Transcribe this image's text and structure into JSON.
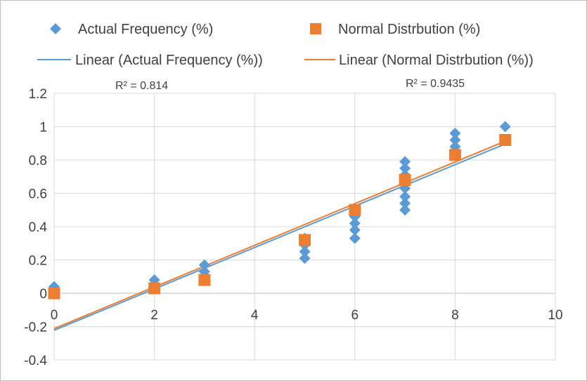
{
  "chart_data": {
    "type": "scatter",
    "title": "",
    "xlabel": "",
    "ylabel": "",
    "xlim": [
      0,
      10
    ],
    "ylim": [
      -0.4,
      1.2
    ],
    "x_ticks": [
      "0",
      "2",
      "4",
      "6",
      "8",
      "10"
    ],
    "y_ticks": [
      "-0.4",
      "-0.2",
      "0",
      "0.2",
      "0.4",
      "0.6",
      "0.8",
      "1",
      "1.2"
    ],
    "grid": "vertical-and-horizontal",
    "legend": "top",
    "series": [
      {
        "name": "Actual Frequency (%)",
        "marker": "diamond",
        "color": "#5B9BD5",
        "points": [
          [
            0,
            0.04
          ],
          [
            0,
            0.02
          ],
          [
            2,
            0.08
          ],
          [
            2,
            0.04
          ],
          [
            3,
            0.17
          ],
          [
            3,
            0.13
          ],
          [
            5,
            0.21
          ],
          [
            5,
            0.25
          ],
          [
            5,
            0.29
          ],
          [
            5,
            0.33
          ],
          [
            6,
            0.33
          ],
          [
            6,
            0.38
          ],
          [
            6,
            0.42
          ],
          [
            6,
            0.46
          ],
          [
            6,
            0.5
          ],
          [
            7,
            0.5
          ],
          [
            7,
            0.54
          ],
          [
            7,
            0.58
          ],
          [
            7,
            0.63
          ],
          [
            7,
            0.67
          ],
          [
            7,
            0.71
          ],
          [
            7,
            0.75
          ],
          [
            7,
            0.79
          ],
          [
            8,
            0.83
          ],
          [
            8,
            0.88
          ],
          [
            8,
            0.92
          ],
          [
            8,
            0.96
          ],
          [
            9,
            1.0
          ]
        ]
      },
      {
        "name": "Normal Distrbution (%)",
        "marker": "square",
        "color": "#ED7D31",
        "points": [
          [
            0,
            0.0
          ],
          [
            2,
            0.03
          ],
          [
            3,
            0.08
          ],
          [
            5,
            0.32
          ],
          [
            6,
            0.5
          ],
          [
            7,
            0.68
          ],
          [
            8,
            0.83
          ],
          [
            9,
            0.92
          ]
        ]
      }
    ],
    "trendlines": [
      {
        "name": "Linear (Actual Frequency (%))",
        "color": "#5B9BD5",
        "x": [
          0,
          9
        ],
        "y": [
          -0.222,
          0.896
        ],
        "r2_label": "R² = 0.814"
      },
      {
        "name": "Linear (Normal Distrbution (%))",
        "color": "#ED7D31",
        "x": [
          0,
          9
        ],
        "y": [
          -0.212,
          0.913
        ],
        "r2_label": "R² = 0.9435"
      }
    ]
  }
}
